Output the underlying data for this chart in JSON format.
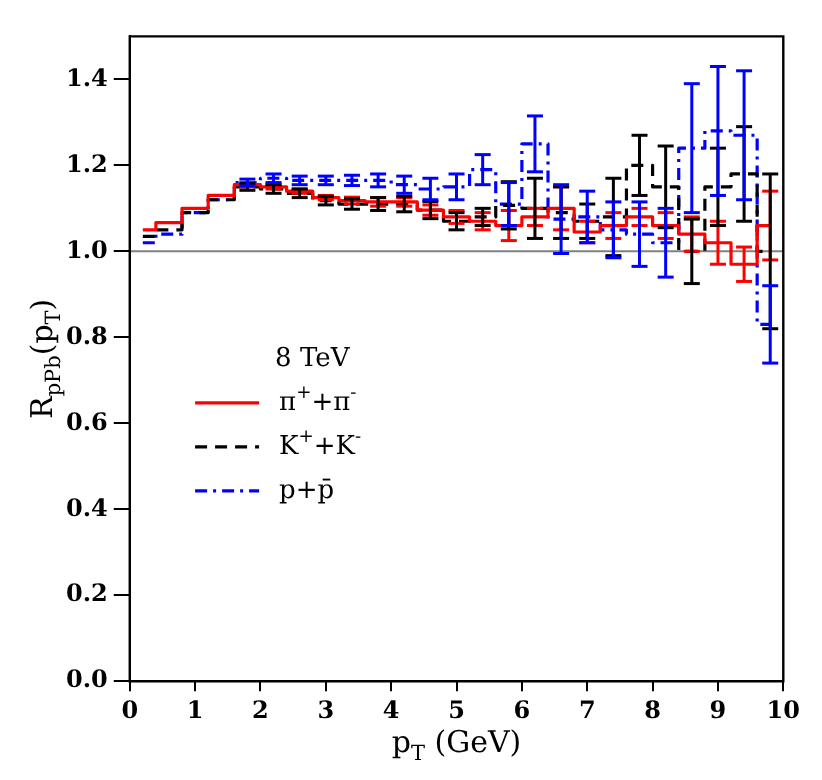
{
  "chart_data": {
    "type": "step",
    "xlabel": "p$_{T}$ (GeV)",
    "ylabel": "R$_{pPb}$(p$_{T}$)",
    "legend_title": "8 TeV",
    "x": [
      0.2,
      0.6,
      1.0,
      1.4,
      1.8,
      2.2,
      2.6,
      3.0,
      3.4,
      3.8,
      4.2,
      4.6,
      5.0,
      5.4,
      5.8,
      6.2,
      6.6,
      7.0,
      7.4,
      7.8,
      8.2,
      8.6,
      9.0,
      9.4,
      9.8
    ],
    "series": [
      {
        "name": "π$^{+}$+π$^{-}$",
        "color": "#ff0000",
        "line_style": "solid",
        "values": [
          1.05,
          1.067,
          1.1,
          1.13,
          1.155,
          1.15,
          1.14,
          1.125,
          1.118,
          1.115,
          1.115,
          1.096,
          1.08,
          1.07,
          1.06,
          1.08,
          1.1,
          1.045,
          1.06,
          1.08,
          1.06,
          1.04,
          1.02,
          0.97,
          1.06
        ],
        "errors": [
          null,
          null,
          null,
          null,
          0.005,
          0.005,
          0.005,
          0.005,
          0.008,
          0.01,
          0.01,
          0.012,
          0.015,
          0.02,
          0.035,
          0.02,
          0.05,
          0.025,
          0.03,
          0.02,
          0.03,
          0.04,
          0.05,
          0.04,
          0.08
        ]
      },
      {
        "name": "K$^{+}$+K$^{-}$",
        "color": "#000000",
        "line_style": "dashed",
        "values": [
          1.035,
          1.05,
          1.09,
          1.12,
          1.15,
          1.145,
          1.135,
          1.118,
          1.11,
          1.11,
          1.11,
          1.096,
          1.07,
          1.08,
          1.107,
          1.1,
          1.09,
          1.07,
          1.08,
          1.2,
          1.15,
          1.0,
          1.15,
          1.18,
          1.0
        ],
        "errors": [
          null,
          null,
          null,
          null,
          0.008,
          0.01,
          0.01,
          0.01,
          0.012,
          0.015,
          0.018,
          0.02,
          0.02,
          0.02,
          0.055,
          0.07,
          0.06,
          0.04,
          0.09,
          0.07,
          0.095,
          0.075,
          0.09,
          0.11,
          0.18
        ]
      },
      {
        "name": "p+p̄",
        "color": "#0000ff",
        "line_style": "dotted",
        "values": [
          1.02,
          1.04,
          1.09,
          1.12,
          1.16,
          1.17,
          1.165,
          1.165,
          1.165,
          1.165,
          1.155,
          1.145,
          1.15,
          1.19,
          1.11,
          1.25,
          1.075,
          1.08,
          1.05,
          1.04,
          1.02,
          1.24,
          1.28,
          1.27,
          0.83
        ],
        "errors": [
          null,
          null,
          null,
          null,
          0.008,
          0.01,
          0.01,
          0.01,
          0.012,
          0.015,
          0.02,
          0.025,
          0.03,
          0.035,
          0.05,
          0.065,
          0.08,
          0.06,
          0.065,
          0.075,
          0.08,
          0.15,
          0.15,
          0.15,
          0.09
        ]
      }
    ],
    "xlim": [
      0,
      10
    ],
    "xticks": [
      0,
      1,
      2,
      3,
      4,
      5,
      6,
      7,
      8,
      9,
      10
    ],
    "ylim": [
      0,
      1.5
    ],
    "yticks": [
      {
        "value": 0,
        "label": "0.0"
      },
      {
        "value": 0.2,
        "label": "0.2"
      },
      {
        "value": 0.4,
        "label": "0.4"
      },
      {
        "value": 0.6,
        "label": "0.6"
      },
      {
        "value": 0.8,
        "label": "0.8"
      },
      {
        "value": 1.0,
        "label": "1.0"
      },
      {
        "value": 1.2,
        "label": "1.2"
      },
      {
        "value": 1.4,
        "label": "1.4"
      }
    ],
    "ref_lines": [
      {
        "axis": "y",
        "value": 1.0,
        "color": "#808080"
      }
    ],
    "legend": "left",
    "grid": false
  }
}
